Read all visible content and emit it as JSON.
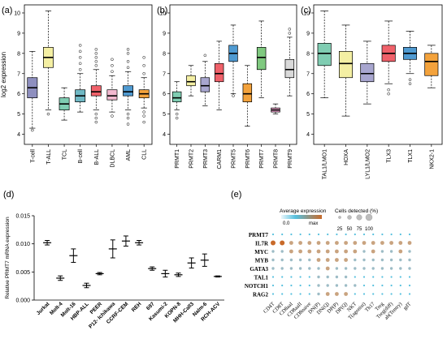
{
  "panels": {
    "a": {
      "label": "(a)"
    },
    "b": {
      "label": "(b)"
    },
    "c": {
      "label": "(c)"
    },
    "d": {
      "label": "(d)"
    },
    "e": {
      "label": "(e)"
    }
  },
  "chart_data": [
    {
      "panel": "(a)",
      "type": "box",
      "ylabel": "log2 expression",
      "ylim": [
        3.5,
        10.4
      ],
      "yticks": [
        4,
        5,
        6,
        7,
        8,
        9,
        10
      ],
      "categories": [
        "T-cell",
        "T-ALL",
        "TCL",
        "B-cell",
        "B-ALL",
        "DLBCL",
        "AML",
        "CLL"
      ],
      "colors": [
        "#8e8fbf",
        "#f4efa3",
        "#7fcdb2",
        "#6fb8c4",
        "#f0616a",
        "#f3b9d0",
        "#4f9ad1",
        "#f3a23c"
      ],
      "boxes": [
        {
          "q1": 5.8,
          "median": 6.3,
          "q3": 6.8,
          "wlo": 4.3,
          "whi": 8.1,
          "outliers": [
            4.2
          ]
        },
        {
          "q1": 7.3,
          "median": 7.8,
          "q3": 8.3,
          "wlo": 5.2,
          "whi": 10.1,
          "outliers": [
            5.0
          ]
        },
        {
          "q1": 5.2,
          "median": 5.5,
          "q3": 5.8,
          "wlo": 4.7,
          "whi": 6.3,
          "outliers": []
        },
        {
          "q1": 5.6,
          "median": 5.9,
          "q3": 6.2,
          "wlo": 5.1,
          "whi": 7.0,
          "outliers": [
            7.2,
            7.5,
            7.8,
            8.1,
            8.4
          ]
        },
        {
          "q1": 5.9,
          "median": 6.1,
          "q3": 6.4,
          "wlo": 5.2,
          "whi": 7.2,
          "outliers": [
            4.6,
            4.8,
            5.0,
            7.4,
            7.6,
            7.8,
            8.0,
            8.2
          ]
        },
        {
          "q1": 5.7,
          "median": 5.9,
          "q3": 6.2,
          "wlo": 5.1,
          "whi": 6.9,
          "outliers": [
            4.9,
            7.1,
            7.4,
            7.7
          ]
        },
        {
          "q1": 5.9,
          "median": 6.1,
          "q3": 6.4,
          "wlo": 5.2,
          "whi": 7.1,
          "outliers": [
            4.5,
            4.8,
            5.0,
            7.3,
            7.6,
            8.0,
            8.2
          ]
        },
        {
          "q1": 5.8,
          "median": 6.0,
          "q3": 6.2,
          "wlo": 5.3,
          "whi": 6.8,
          "outliers": [
            4.6,
            4.9,
            5.1,
            7.0,
            7.4,
            7.8
          ]
        }
      ]
    },
    {
      "panel": "(b)",
      "type": "box",
      "ylim": [
        3.5,
        10.4
      ],
      "yticks": [
        4,
        5,
        6,
        7,
        8,
        9,
        10
      ],
      "categories": [
        "PRMT1",
        "PRMT2",
        "PRMT3",
        "CARM1",
        "PRMT5",
        "PRMT6",
        "PRMT7",
        "PRMT8",
        "PRMT9"
      ],
      "colors": [
        "#7fcdb2",
        "#f4efa3",
        "#a8a6cf",
        "#f0616a",
        "#4f9ad1",
        "#f3a23c",
        "#7fc97f",
        "#e8a0c8",
        "#d9d9d9"
      ],
      "boxes": [
        {
          "q1": 5.6,
          "median": 5.8,
          "q3": 6.1,
          "wlo": 5.2,
          "whi": 6.6,
          "outliers": [
            4.8,
            5.0
          ]
        },
        {
          "q1": 6.4,
          "median": 6.6,
          "q3": 6.9,
          "wlo": 5.9,
          "whi": 7.4,
          "outliers": []
        },
        {
          "q1": 6.1,
          "median": 6.4,
          "q3": 6.8,
          "wlo": 5.4,
          "whi": 7.6,
          "outliers": [
            7.9
          ]
        },
        {
          "q1": 6.6,
          "median": 7.0,
          "q3": 7.5,
          "wlo": 5.2,
          "whi": 8.6,
          "outliers": []
        },
        {
          "q1": 7.6,
          "median": 8.0,
          "q3": 8.4,
          "wlo": 6.0,
          "whi": 9.4,
          "outliers": [
            5.9
          ]
        },
        {
          "q1": 5.6,
          "median": 6.0,
          "q3": 6.5,
          "wlo": 4.4,
          "whi": 7.4,
          "outliers": []
        },
        {
          "q1": 7.2,
          "median": 7.8,
          "q3": 8.3,
          "wlo": 5.8,
          "whi": 9.6,
          "outliers": []
        },
        {
          "q1": 5.1,
          "median": 5.2,
          "q3": 5.3,
          "wlo": 5.0,
          "whi": 5.5,
          "outliers": []
        },
        {
          "q1": 6.8,
          "median": 7.2,
          "q3": 7.7,
          "wlo": 5.9,
          "whi": 8.8,
          "outliers": [
            9.0,
            9.2
          ]
        }
      ]
    },
    {
      "panel": "(c)",
      "type": "box",
      "ylim": [
        3.5,
        10.4
      ],
      "yticks": [
        4,
        5,
        6,
        7,
        8,
        9,
        10
      ],
      "categories": [
        "TAL1/LMO1",
        "HOXA",
        "LYL1/LMO2",
        "TLX3",
        "TLX1",
        "NKX2-1"
      ],
      "colors": [
        "#7fcdb2",
        "#f4efa3",
        "#a8a6cf",
        "#f0616a",
        "#4f9ad1",
        "#f3a23c"
      ],
      "boxes": [
        {
          "q1": 7.4,
          "median": 8.0,
          "q3": 8.5,
          "wlo": 5.8,
          "whi": 10.1,
          "outliers": []
        },
        {
          "q1": 6.8,
          "median": 7.5,
          "q3": 8.1,
          "wlo": 4.9,
          "whi": 9.4,
          "outliers": []
        },
        {
          "q1": 6.6,
          "median": 7.0,
          "q3": 7.5,
          "wlo": 5.5,
          "whi": 8.6,
          "outliers": []
        },
        {
          "q1": 7.6,
          "median": 8.0,
          "q3": 8.4,
          "wlo": 6.5,
          "whi": 9.6,
          "outliers": [
            6.2,
            6.0
          ]
        },
        {
          "q1": 7.7,
          "median": 8.0,
          "q3": 8.3,
          "wlo": 7.0,
          "whi": 9.1,
          "outliers": [
            6.7,
            6.5
          ]
        },
        {
          "q1": 6.9,
          "median": 7.6,
          "q3": 8.0,
          "wlo": 6.3,
          "whi": 8.4,
          "outliers": []
        }
      ]
    },
    {
      "panel": "(d)",
      "type": "errorbar",
      "ylabel": "Relative PRMT7 mRNA expression",
      "ylim": [
        0,
        0.015
      ],
      "yticks": [
        0.0,
        0.005,
        0.01,
        0.015
      ],
      "ytick_labels": [
        "0.000",
        "0.005",
        "0.010",
        "0.015"
      ],
      "categories": [
        "Jurkat",
        "Molt-4",
        "Molt-16",
        "HBP-ALL",
        "PEER",
        "P12- Ichikawa",
        "CCRF-CEM",
        "REH",
        "697",
        "Kasumi-2",
        "KOPN-8",
        "MHH-Call3",
        "Nalm-6",
        "RCH-ACV"
      ],
      "values": [
        0.0102,
        0.0039,
        0.0079,
        0.0026,
        0.0047,
        0.0091,
        0.0105,
        0.0102,
        0.0056,
        0.0047,
        0.0045,
        0.0066,
        0.0071,
        0.0042
      ],
      "errors": [
        0.0004,
        0.0004,
        0.0012,
        0.0004,
        0.0002,
        0.0016,
        0.0009,
        0.0004,
        0.0003,
        0.0006,
        0.0003,
        0.0009,
        0.0011,
        0.0001
      ]
    },
    {
      "panel": "(e)",
      "type": "dotplot",
      "legend": {
        "color_title": "Average expression",
        "color_min": "0.0",
        "color_max": "max",
        "size_title": "Cells detected (%)",
        "size_labels": [
          "25",
          "50",
          "75",
          "100"
        ]
      },
      "genes": [
        "PRMT7",
        "IL7R",
        "MYC",
        "MYB",
        "GATA3",
        "TAL1",
        "NOTCH1",
        "RAG2"
      ],
      "cell_types": [
        "CD4T",
        "CD8T",
        "CD8aaI",
        "CD8aaII",
        "CD8naive",
        "DN(P)",
        "DN(Q)",
        "DP(P)",
        "DP(Q)",
        "NKT",
        "T(agonist)",
        "Th17",
        "Treg",
        "Treg(diff)",
        "ab(Tentry)",
        "gdT"
      ],
      "colors": [
        "#56c0de",
        "#c86a2a"
      ]
    }
  ]
}
